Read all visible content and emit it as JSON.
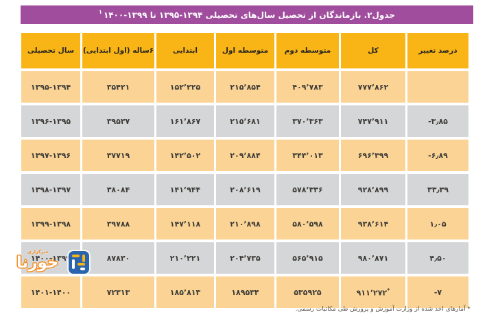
{
  "title": {
    "text": "جدول۲. بازماندگان از تحصیل سال‌های تحصیلی ۱۳۹۴-۱۳۹۵ تا ۱۳۹۹-۱۴۰۰",
    "marker": "۱"
  },
  "colors": {
    "title_bar": "#a04d9e",
    "header_cell": "#f9b416",
    "row_orange": "#fbd495",
    "row_gray": "#d5d6d7",
    "negative_highlight": "#ef3532",
    "cell_text": "#3d3b38",
    "logo_blue": "#2a64ac",
    "logo_orange": "#f28a1e"
  },
  "table": {
    "headers": [
      {
        "key": "academic-year",
        "label": "سال تحصیلی"
      },
      {
        "key": "six-year-old-first-grade",
        "label": "۶ساله (اول ابتدایی)"
      },
      {
        "key": "elementary",
        "label": "ابتدایی"
      },
      {
        "key": "lower-secondary",
        "label": "متوسطه اول"
      },
      {
        "key": "upper-secondary",
        "label": "متوسطه دوم"
      },
      {
        "key": "total",
        "label": "کل"
      },
      {
        "key": "change-percent",
        "label": "درصد تغییر"
      }
    ],
    "rows": [
      {
        "shade": "orange",
        "cells": [
          "۱۳۹۵-۱۳۹۴",
          "۳۵۴۲۱",
          "۱۵۲٬۲۲۵",
          "۲۱۵٬۸۵۴",
          "۴۰۹٬۷۸۳",
          "۷۷۷٬۸۶۲",
          ""
        ]
      },
      {
        "shade": "gray",
        "cells": [
          "۱۳۹۶-۱۳۹۵",
          "۳۹۵۳۷",
          "۱۶۱٬۸۶۷",
          "۲۱۵٬۶۸۱",
          "۳۷۰٬۳۶۳",
          "۷۴۷٬۹۱۱",
          {
            "v": "-۳٫۸۵",
            "style": "red"
          }
        ]
      },
      {
        "shade": "orange",
        "cells": [
          "۱۳۹۷-۱۳۹۶",
          "۳۷۷۱۹",
          "۱۴۲٬۵۰۲",
          "۲۰۹٬۸۸۴",
          "۳۴۴٬۰۱۳",
          "۶۹۶٬۳۹۹",
          "-۶٫۸۹"
        ]
      },
      {
        "shade": "gray",
        "cells": [
          "۱۳۹۸-۱۳۹۷",
          "۳۸۰۸۴",
          "۱۴۱٬۹۴۴",
          "۲۰۸٬۶۱۹",
          "۵۷۸٬۳۳۶",
          "۹۲۸٬۸۹۹",
          "۳۳٫۳۹"
        ]
      },
      {
        "shade": "orange",
        "cells": [
          "۱۳۹۹-۱۳۹۸",
          "۳۹۷۸۸",
          "۱۴۷٬۱۱۸",
          "۲۱۰٬۸۹۸",
          "۵۸۰٬۵۹۸",
          "۹۳۸٬۶۱۴",
          "۱٫۰۵"
        ]
      },
      {
        "shade": "gray",
        "cells": [
          "۱۴۰۰-۱۳۹۹",
          "۸۷۸۳۰",
          "۲۱۰٬۲۲۱",
          "۲۰۴٬۷۳۵",
          "۵۶۵٬۹۱۵",
          "۹۸۰٬۸۷۱",
          "۴٫۵۰"
        ]
      },
      {
        "shade": "orange",
        "cells": [
          "۱۴۰۱-۱۴۰۰",
          "۷۲۳۱۳",
          "۱۸۵٬۸۱۳",
          "۱۸۹۵۳۴",
          "۵۳۵۹۲۵",
          {
            "v": "۹۱۱٬۲۷۲",
            "sup": "*"
          },
          "-۷"
        ]
      }
    ]
  },
  "footnote": {
    "text": "* آمارهای اخذ شده از وزارت آموزش و پرورش طی مکاتبات رسمی."
  },
  "watermark": {
    "wordmark": "خورنا",
    "tagline": "خبرگزاری"
  }
}
